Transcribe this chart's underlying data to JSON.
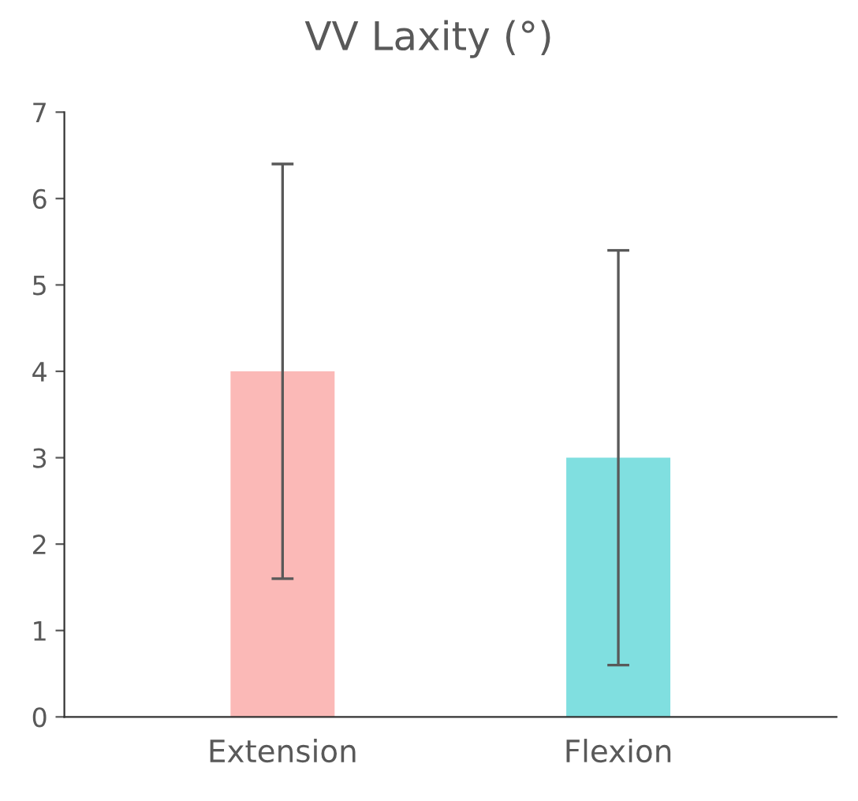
{
  "chart_data": {
    "type": "bar",
    "title": "VV Laxity (°)",
    "categories": [
      "Extension",
      "Flexion"
    ],
    "values": [
      4,
      3
    ],
    "colors": [
      "#fbb9b7",
      "#80dfe0"
    ],
    "errors": [
      2.4,
      2.4
    ],
    "ylim": [
      0,
      7
    ],
    "yticks": [
      0,
      1,
      2,
      3,
      4,
      5,
      6,
      7
    ],
    "grid": false,
    "legend": false
  }
}
